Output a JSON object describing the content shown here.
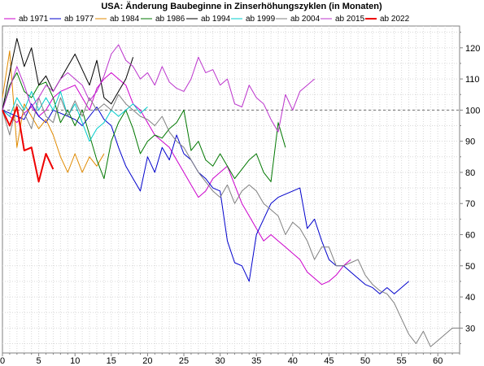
{
  "chart_data": {
    "type": "line",
    "title": "USA: Änderung Baubeginne in Zinserhöhungszyklen (in Monaten)",
    "xlabel": "",
    "ylabel": "",
    "xlim": [
      0,
      63
    ],
    "ylim": [
      22,
      127
    ],
    "x_ticks": [
      0,
      5,
      10,
      15,
      20,
      25,
      30,
      35,
      40,
      45,
      50,
      55,
      60
    ],
    "y_ticks": [
      30,
      40,
      50,
      60,
      70,
      80,
      90,
      100,
      110,
      120
    ],
    "reference_line": 100,
    "grid": "dotted",
    "legend_position": "top",
    "y_axis_side": "right",
    "series": [
      {
        "name": "ab 1971",
        "color": "#cc00cc",
        "width": 1,
        "values": [
          100,
          98,
          96,
          99,
          101,
          98,
          100,
          104,
          106,
          107,
          108,
          104,
          100,
          107,
          110,
          112,
          110,
          108,
          102,
          100,
          96,
          92,
          90,
          88,
          84,
          80,
          76,
          72,
          74,
          78,
          80,
          82,
          76,
          70,
          66,
          62,
          58,
          60,
          58,
          56,
          54,
          52,
          48,
          46,
          44,
          45,
          47,
          50,
          52
        ]
      },
      {
        "name": "ab 1977",
        "color": "#0000cc",
        "width": 1,
        "values": [
          100,
          99,
          98,
          97,
          102,
          98,
          96,
          100,
          99,
          98,
          97,
          95,
          98,
          101,
          97,
          95,
          88,
          82,
          78,
          74,
          85,
          80,
          88,
          84,
          92,
          86,
          84,
          80,
          78,
          75,
          74,
          58,
          51,
          50,
          45,
          60,
          65,
          70,
          72,
          73,
          74,
          75,
          62,
          65,
          58,
          52,
          50,
          50,
          48,
          46,
          44,
          43,
          41,
          43,
          41,
          43,
          45
        ]
      },
      {
        "name": "ab 1984",
        "color": "#e08a00",
        "width": 1,
        "values": [
          104,
          119,
          88,
          102,
          98,
          94,
          97,
          92,
          85,
          80,
          86,
          80,
          85,
          82,
          86
        ]
      },
      {
        "name": "ab 1986",
        "color": "#007700",
        "width": 1,
        "values": [
          100,
          108,
          112,
          106,
          104,
          108,
          109,
          104,
          96,
          100,
          95,
          100,
          92,
          84,
          78,
          90,
          96,
          100,
          94,
          86,
          90,
          92,
          91,
          94,
          96,
          100,
          87,
          90,
          84,
          82,
          86,
          82,
          78,
          81,
          84,
          86,
          80,
          77,
          96,
          88
        ]
      },
      {
        "name": "ab 1994",
        "color": "#000000",
        "width": 1,
        "values": [
          100,
          112,
          123,
          114,
          120,
          108,
          111,
          106,
          110,
          114,
          118,
          113,
          108,
          116,
          104,
          102,
          106,
          110,
          117
        ]
      },
      {
        "name": "ab 1999",
        "color": "#00cccc",
        "width": 1,
        "values": [
          100,
          98,
          104,
          100,
          106,
          100,
          104,
          100,
          106,
          98,
          102,
          96,
          90,
          94,
          96,
          100,
          98,
          100,
          102,
          99,
          101
        ]
      },
      {
        "name": "ab 2004",
        "color": "#808080",
        "width": 1,
        "values": [
          100,
          92,
          102,
          99,
          94,
          104,
          98,
          96,
          104,
          98,
          103,
          98,
          104,
          100,
          102,
          100,
          105,
          102,
          100,
          98,
          97,
          95,
          98,
          93,
          90,
          88,
          84,
          80,
          77,
          74,
          72,
          76,
          70,
          74,
          76,
          74,
          70,
          68,
          66,
          60,
          64,
          62,
          58,
          52,
          56,
          56,
          50,
          50,
          51,
          52,
          47,
          44,
          42,
          41,
          38,
          33,
          28,
          25,
          29,
          24,
          26,
          28,
          30,
          30
        ]
      },
      {
        "name": "ab 2015",
        "color": "#bb33cc",
        "width": 1,
        "values": [
          100,
          107,
          114,
          108,
          101,
          104,
          108,
          106,
          110,
          112,
          110,
          108,
          103,
          106,
          111,
          118,
          121,
          116,
          114,
          110,
          112,
          108,
          114,
          109,
          107,
          106,
          110,
          117,
          112,
          113,
          108,
          110,
          102,
          101,
          108,
          104,
          102,
          97,
          93,
          105,
          100,
          106,
          108,
          110
        ]
      },
      {
        "name": "ab 2022",
        "color": "#ee0000",
        "width": 2,
        "values": [
          100,
          95,
          101,
          87,
          88,
          77,
          86,
          81
        ]
      }
    ]
  }
}
